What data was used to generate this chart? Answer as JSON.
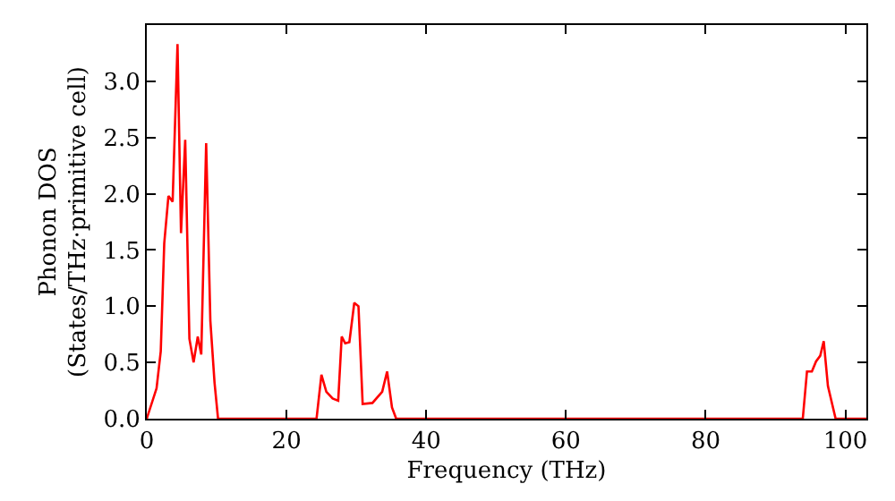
{
  "chart_data": {
    "type": "line",
    "xlabel": "Frequency (THz)",
    "ylabel": "Phonon DOS\n(States/THz·primitive cell)",
    "x": [
      0,
      0.1,
      1.4,
      2.0,
      2.5,
      3.1,
      3.7,
      4.4,
      4.9,
      5.5,
      6.1,
      6.7,
      7.3,
      7.8,
      8.5,
      9.1,
      9.7,
      10.2,
      24.3,
      25.0,
      25.7,
      26.6,
      27.4,
      27.9,
      28.4,
      29.0,
      29.7,
      30.3,
      30.9,
      32.3,
      33.7,
      34.4,
      35.1,
      35.7,
      93.9,
      94.5,
      95.2,
      95.8,
      96.4,
      96.9,
      97.5,
      98.6,
      103
    ],
    "series": [
      {
        "color": "#ff0000",
        "values": [
          0,
          0.02,
          0.27,
          0.6,
          1.56,
          1.98,
          1.93,
          3.33,
          1.65,
          2.48,
          0.71,
          0.5,
          0.73,
          0.57,
          2.45,
          0.87,
          0.32,
          0,
          0,
          0.39,
          0.24,
          0.18,
          0.16,
          0.73,
          0.67,
          0.68,
          1.03,
          1.0,
          0.13,
          0.14,
          0.24,
          0.42,
          0.1,
          0,
          0,
          0.42,
          0.42,
          0.51,
          0.56,
          0.69,
          0.29,
          0,
          0
        ]
      }
    ],
    "xlim": [
      0,
      103
    ],
    "xticks": [
      0,
      20,
      40,
      60,
      80,
      100
    ],
    "ylim": [
      0,
      3.5
    ],
    "yticks": [
      {
        "value": 0,
        "label": "0.0"
      },
      {
        "value": 0.5,
        "label": "0.5"
      },
      {
        "value": 1,
        "label": "1.0"
      },
      {
        "value": 1.5,
        "label": "1.5"
      },
      {
        "value": 2,
        "label": "2.0"
      },
      {
        "value": 2.5,
        "label": "2.5"
      },
      {
        "value": 3,
        "label": "3.0"
      }
    ],
    "marker": "none",
    "line_style": "solid"
  }
}
